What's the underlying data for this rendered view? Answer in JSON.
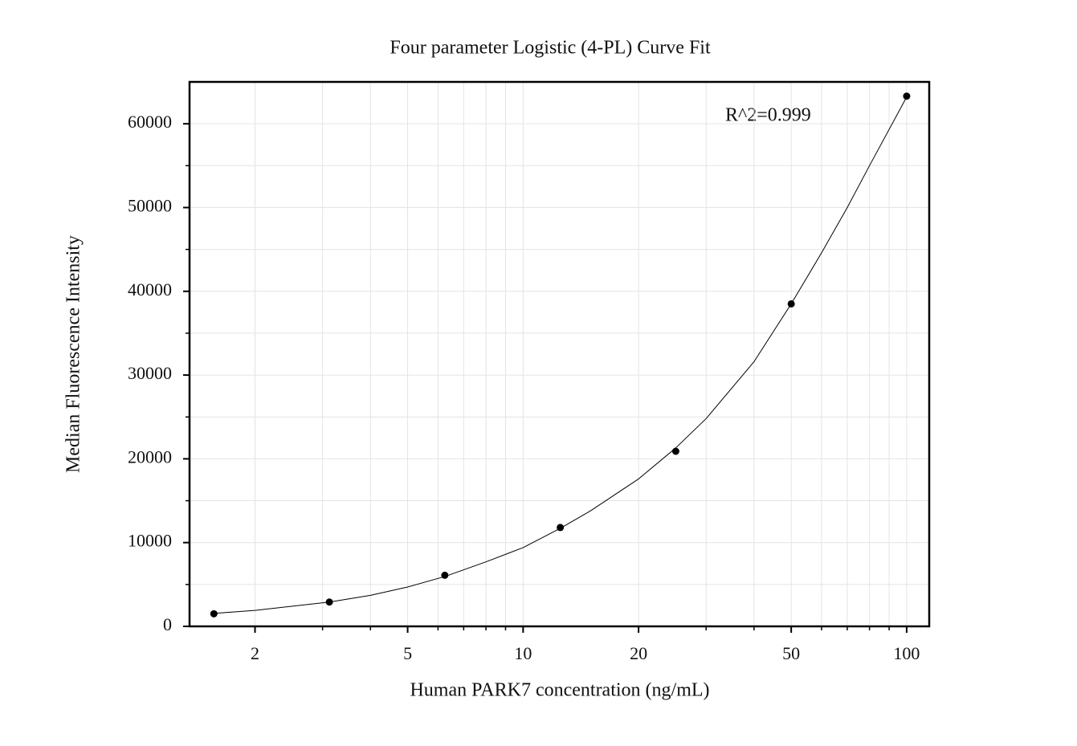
{
  "chart_data": {
    "type": "scatter",
    "title": "Four parameter Logistic (4-PL) Curve Fit",
    "x_label": "Human PARK7 concentration (ng/mL)",
    "y_label": "Median Fluorescence Intensity",
    "annotation": "R^2=0.999",
    "xscale": "log",
    "xlim": [
      1.35,
      114.5
    ],
    "ylim": [
      0,
      65000
    ],
    "xticks": [
      2,
      5,
      10,
      20,
      50,
      100
    ],
    "yticks": [
      0,
      10000,
      20000,
      30000,
      40000,
      50000,
      60000
    ],
    "xminorticks": [
      3,
      4,
      6,
      7,
      8,
      9,
      30,
      40,
      60,
      70,
      80,
      90
    ],
    "yminorticks": [
      5000,
      15000,
      25000,
      35000,
      45000,
      55000
    ],
    "grid": true,
    "series": [
      {
        "style": "line",
        "color": "#000000",
        "x": [
          1.5625,
          2,
          3.125,
          4,
          5,
          6.25,
          8,
          10,
          12.5,
          15,
          20,
          25,
          30,
          40,
          50,
          60,
          70,
          80,
          100
        ],
        "values": [
          1550,
          1900,
          2900,
          3700,
          4700,
          5950,
          7700,
          9400,
          11700,
          13800,
          17600,
          21300,
          24800,
          31600,
          38500,
          44600,
          50000,
          55000,
          63200
        ]
      },
      {
        "style": "markers",
        "color": "#000000",
        "x": [
          1.5625,
          3.125,
          6.25,
          12.5,
          25,
          50,
          100
        ],
        "values": [
          1500,
          2900,
          6100,
          11800,
          20900,
          38500,
          63300
        ]
      }
    ]
  }
}
